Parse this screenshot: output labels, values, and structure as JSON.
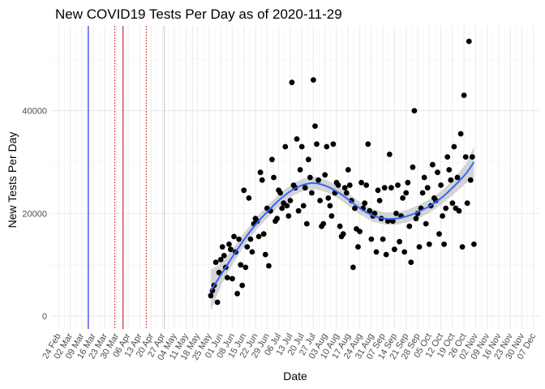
{
  "chart_data": {
    "type": "scatter",
    "title": "New COVID19 Tests Per Day as of 2020-11-29",
    "xlabel": "Date",
    "ylabel": "New Tests Per Day",
    "xlim": [
      "2020-02-19",
      "2020-12-11"
    ],
    "ylim": [
      -2500,
      56500
    ],
    "grid": true,
    "y_ticks": [
      {
        "value": 0,
        "label": "0"
      },
      {
        "value": 20000,
        "label": "20000"
      },
      {
        "value": 40000,
        "label": "40000"
      }
    ],
    "x_ticks": [
      {
        "date": "2020-02-24",
        "label": "24 Feb"
      },
      {
        "date": "2020-03-02",
        "label": "02 Mar"
      },
      {
        "date": "2020-03-09",
        "label": "09 Mar"
      },
      {
        "date": "2020-03-16",
        "label": "16 Mar"
      },
      {
        "date": "2020-03-23",
        "label": "23 Mar"
      },
      {
        "date": "2020-03-30",
        "label": "30 Mar"
      },
      {
        "date": "2020-04-06",
        "label": "06 Apr"
      },
      {
        "date": "2020-04-13",
        "label": "13 Apr"
      },
      {
        "date": "2020-04-20",
        "label": "20 Apr"
      },
      {
        "date": "2020-04-27",
        "label": "27 Apr"
      },
      {
        "date": "2020-05-04",
        "label": "04 May"
      },
      {
        "date": "2020-05-11",
        "label": "11 May"
      },
      {
        "date": "2020-05-18",
        "label": "18 May"
      },
      {
        "date": "2020-05-25",
        "label": "25 May"
      },
      {
        "date": "2020-06-01",
        "label": "01 Jun"
      },
      {
        "date": "2020-06-08",
        "label": "08 Jun"
      },
      {
        "date": "2020-06-15",
        "label": "15 Jun"
      },
      {
        "date": "2020-06-22",
        "label": "22 Jun"
      },
      {
        "date": "2020-06-29",
        "label": "29 Jun"
      },
      {
        "date": "2020-07-06",
        "label": "06 Jul"
      },
      {
        "date": "2020-07-13",
        "label": "13 Jul"
      },
      {
        "date": "2020-07-20",
        "label": "20 Jul"
      },
      {
        "date": "2020-07-27",
        "label": "27 Jul"
      },
      {
        "date": "2020-08-03",
        "label": "03 Aug"
      },
      {
        "date": "2020-08-10",
        "label": "10 Aug"
      },
      {
        "date": "2020-08-17",
        "label": "17 Aug"
      },
      {
        "date": "2020-08-24",
        "label": "24 Aug"
      },
      {
        "date": "2020-08-31",
        "label": "31 Aug"
      },
      {
        "date": "2020-09-07",
        "label": "07 Sep"
      },
      {
        "date": "2020-09-14",
        "label": "14 Sep"
      },
      {
        "date": "2020-09-21",
        "label": "21 Sep"
      },
      {
        "date": "2020-09-28",
        "label": "28 Sep"
      },
      {
        "date": "2020-10-05",
        "label": "05 Oct"
      },
      {
        "date": "2020-10-12",
        "label": "12 Oct"
      },
      {
        "date": "2020-10-19",
        "label": "19 Oct"
      },
      {
        "date": "2020-10-26",
        "label": "26 Oct"
      },
      {
        "date": "2020-11-02",
        "label": "02 Nov"
      },
      {
        "date": "2020-11-09",
        "label": "09 Nov"
      },
      {
        "date": "2020-11-16",
        "label": "16 Nov"
      },
      {
        "date": "2020-11-23",
        "label": "23 Nov"
      },
      {
        "date": "2020-11-30",
        "label": "30 Nov"
      },
      {
        "date": "2020-12-07",
        "label": "07 Dec"
      }
    ],
    "reference_lines": [
      {
        "date": "2020-03-13",
        "color": "#0000ff",
        "style": "solid"
      },
      {
        "date": "2020-03-29",
        "color": "#cc0000",
        "style": "dotted"
      },
      {
        "date": "2020-04-03",
        "color": "#cc0000",
        "style": "solid"
      },
      {
        "date": "2020-04-17",
        "color": "#cc0000",
        "style": "dotted"
      },
      {
        "date": "2020-04-28",
        "color": "#d8b8d8",
        "style": "solid"
      },
      {
        "date": "2020-05-15",
        "color": "#e8c8e8",
        "style": "dotted"
      }
    ],
    "points": [
      {
        "x": "2020-05-26",
        "y": 4000
      },
      {
        "x": "2020-05-27",
        "y": 5000
      },
      {
        "x": "2020-05-28",
        "y": 6000
      },
      {
        "x": "2020-05-29",
        "y": 10500
      },
      {
        "x": "2020-05-30",
        "y": 2700
      },
      {
        "x": "2020-05-31",
        "y": 8500
      },
      {
        "x": "2020-06-01",
        "y": 11000
      },
      {
        "x": "2020-06-02",
        "y": 13500
      },
      {
        "x": "2020-06-03",
        "y": 11800
      },
      {
        "x": "2020-06-04",
        "y": 9500
      },
      {
        "x": "2020-06-05",
        "y": 7500
      },
      {
        "x": "2020-06-06",
        "y": 14000
      },
      {
        "x": "2020-06-07",
        "y": 13000
      },
      {
        "x": "2020-06-08",
        "y": 7300
      },
      {
        "x": "2020-06-09",
        "y": 15500
      },
      {
        "x": "2020-06-10",
        "y": 12500
      },
      {
        "x": "2020-06-11",
        "y": 4400
      },
      {
        "x": "2020-06-12",
        "y": 15000
      },
      {
        "x": "2020-06-13",
        "y": 10000
      },
      {
        "x": "2020-06-14",
        "y": 6000
      },
      {
        "x": "2020-06-15",
        "y": 24500
      },
      {
        "x": "2020-06-16",
        "y": 9500
      },
      {
        "x": "2020-06-17",
        "y": 13500
      },
      {
        "x": "2020-06-18",
        "y": 23000
      },
      {
        "x": "2020-06-19",
        "y": 15000
      },
      {
        "x": "2020-06-20",
        "y": 12500
      },
      {
        "x": "2020-06-21",
        "y": 18000
      },
      {
        "x": "2020-06-22",
        "y": 19000
      },
      {
        "x": "2020-06-23",
        "y": 18500
      },
      {
        "x": "2020-06-24",
        "y": 15500
      },
      {
        "x": "2020-06-25",
        "y": 28000
      },
      {
        "x": "2020-06-26",
        "y": 26500
      },
      {
        "x": "2020-06-27",
        "y": 16000
      },
      {
        "x": "2020-06-28",
        "y": 12000
      },
      {
        "x": "2020-06-29",
        "y": 21000
      },
      {
        "x": "2020-06-30",
        "y": 9800
      },
      {
        "x": "2020-07-01",
        "y": 20500
      },
      {
        "x": "2020-07-02",
        "y": 30500
      },
      {
        "x": "2020-07-03",
        "y": 27000
      },
      {
        "x": "2020-07-04",
        "y": 18500
      },
      {
        "x": "2020-07-05",
        "y": 19000
      },
      {
        "x": "2020-07-06",
        "y": 24500
      },
      {
        "x": "2020-07-07",
        "y": 24000
      },
      {
        "x": "2020-07-08",
        "y": 21000
      },
      {
        "x": "2020-07-09",
        "y": 22000
      },
      {
        "x": "2020-07-10",
        "y": 33000
      },
      {
        "x": "2020-07-11",
        "y": 21500
      },
      {
        "x": "2020-07-12",
        "y": 19500
      },
      {
        "x": "2020-07-13",
        "y": 22500
      },
      {
        "x": "2020-07-14",
        "y": 45500
      },
      {
        "x": "2020-07-15",
        "y": 25500
      },
      {
        "x": "2020-07-16",
        "y": 25000
      },
      {
        "x": "2020-07-17",
        "y": 34500
      },
      {
        "x": "2020-07-18",
        "y": 20500
      },
      {
        "x": "2020-07-19",
        "y": 28500
      },
      {
        "x": "2020-07-20",
        "y": 33000
      },
      {
        "x": "2020-07-21",
        "y": 21500
      },
      {
        "x": "2020-07-22",
        "y": 25000
      },
      {
        "x": "2020-07-23",
        "y": 18000
      },
      {
        "x": "2020-07-24",
        "y": 30500
      },
      {
        "x": "2020-07-25",
        "y": 27000
      },
      {
        "x": "2020-07-26",
        "y": 24000
      },
      {
        "x": "2020-07-27",
        "y": 46000
      },
      {
        "x": "2020-07-28",
        "y": 37000
      },
      {
        "x": "2020-07-29",
        "y": 33500
      },
      {
        "x": "2020-07-30",
        "y": 26500
      },
      {
        "x": "2020-07-31",
        "y": 22500
      },
      {
        "x": "2020-08-01",
        "y": 17500
      },
      {
        "x": "2020-08-02",
        "y": 18000
      },
      {
        "x": "2020-08-03",
        "y": 27500
      },
      {
        "x": "2020-08-04",
        "y": 33000
      },
      {
        "x": "2020-08-05",
        "y": 23000
      },
      {
        "x": "2020-08-06",
        "y": 21500
      },
      {
        "x": "2020-08-07",
        "y": 19500
      },
      {
        "x": "2020-08-08",
        "y": 33500
      },
      {
        "x": "2020-08-09",
        "y": 24000
      },
      {
        "x": "2020-08-10",
        "y": 26000
      },
      {
        "x": "2020-08-11",
        "y": 25500
      },
      {
        "x": "2020-08-12",
        "y": 17500
      },
      {
        "x": "2020-08-13",
        "y": 15500
      },
      {
        "x": "2020-08-14",
        "y": 16000
      },
      {
        "x": "2020-08-15",
        "y": 25000
      },
      {
        "x": "2020-08-16",
        "y": 24000
      },
      {
        "x": "2020-08-17",
        "y": 28500
      },
      {
        "x": "2020-08-18",
        "y": 25500
      },
      {
        "x": "2020-08-19",
        "y": 22500
      },
      {
        "x": "2020-08-20",
        "y": 9500
      },
      {
        "x": "2020-08-21",
        "y": 21000
      },
      {
        "x": "2020-08-22",
        "y": 17000
      },
      {
        "x": "2020-08-23",
        "y": 13500
      },
      {
        "x": "2020-08-24",
        "y": 16500
      },
      {
        "x": "2020-08-25",
        "y": 26000
      },
      {
        "x": "2020-08-26",
        "y": 21000
      },
      {
        "x": "2020-08-27",
        "y": 22000
      },
      {
        "x": "2020-08-28",
        "y": 25500
      },
      {
        "x": "2020-08-29",
        "y": 33500
      },
      {
        "x": "2020-08-30",
        "y": 20500
      },
      {
        "x": "2020-08-31",
        "y": 15000
      },
      {
        "x": "2020-09-01",
        "y": 19500
      },
      {
        "x": "2020-09-02",
        "y": 20000
      },
      {
        "x": "2020-09-03",
        "y": 12500
      },
      {
        "x": "2020-09-04",
        "y": 24500
      },
      {
        "x": "2020-09-05",
        "y": 22500
      },
      {
        "x": "2020-09-06",
        "y": 19000
      },
      {
        "x": "2020-09-07",
        "y": 15000
      },
      {
        "x": "2020-09-08",
        "y": 25000
      },
      {
        "x": "2020-09-09",
        "y": 12000
      },
      {
        "x": "2020-09-10",
        "y": 18500
      },
      {
        "x": "2020-09-11",
        "y": 31500
      },
      {
        "x": "2020-09-12",
        "y": 25000
      },
      {
        "x": "2020-09-13",
        "y": 18500
      },
      {
        "x": "2020-09-14",
        "y": 13000
      },
      {
        "x": "2020-09-15",
        "y": 20000
      },
      {
        "x": "2020-09-16",
        "y": 25500
      },
      {
        "x": "2020-09-17",
        "y": 14500
      },
      {
        "x": "2020-09-18",
        "y": 19500
      },
      {
        "x": "2020-09-19",
        "y": 23000
      },
      {
        "x": "2020-09-20",
        "y": 12500
      },
      {
        "x": "2020-09-21",
        "y": 24000
      },
      {
        "x": "2020-09-22",
        "y": 26000
      },
      {
        "x": "2020-09-23",
        "y": 17500
      },
      {
        "x": "2020-09-24",
        "y": 10500
      },
      {
        "x": "2020-09-25",
        "y": 29000
      },
      {
        "x": "2020-09-26",
        "y": 40000
      },
      {
        "x": "2020-09-27",
        "y": 19000
      },
      {
        "x": "2020-09-28",
        "y": 20000
      },
      {
        "x": "2020-09-29",
        "y": 13500
      },
      {
        "x": "2020-09-30",
        "y": 21000
      },
      {
        "x": "2020-10-01",
        "y": 24000
      },
      {
        "x": "2020-10-02",
        "y": 27000
      },
      {
        "x": "2020-10-03",
        "y": 18000
      },
      {
        "x": "2020-10-04",
        "y": 25000
      },
      {
        "x": "2020-10-05",
        "y": 14000
      },
      {
        "x": "2020-10-06",
        "y": 21500
      },
      {
        "x": "2020-10-07",
        "y": 29500
      },
      {
        "x": "2020-10-08",
        "y": 23000
      },
      {
        "x": "2020-10-09",
        "y": 22500
      },
      {
        "x": "2020-10-10",
        "y": 28000
      },
      {
        "x": "2020-10-11",
        "y": 16000
      },
      {
        "x": "2020-10-12",
        "y": 25500
      },
      {
        "x": "2020-10-13",
        "y": 19500
      },
      {
        "x": "2020-10-14",
        "y": 14000
      },
      {
        "x": "2020-10-15",
        "y": 21000
      },
      {
        "x": "2020-10-16",
        "y": 31000
      },
      {
        "x": "2020-10-17",
        "y": 28500
      },
      {
        "x": "2020-10-18",
        "y": 26500
      },
      {
        "x": "2020-10-19",
        "y": 22000
      },
      {
        "x": "2020-10-20",
        "y": 33000
      },
      {
        "x": "2020-10-21",
        "y": 21000
      },
      {
        "x": "2020-10-22",
        "y": 27000
      },
      {
        "x": "2020-10-23",
        "y": 20500
      },
      {
        "x": "2020-10-24",
        "y": 35500
      },
      {
        "x": "2020-10-25",
        "y": 13500
      },
      {
        "x": "2020-10-26",
        "y": 43000
      },
      {
        "x": "2020-10-27",
        "y": 31000
      },
      {
        "x": "2020-10-28",
        "y": 22000
      },
      {
        "x": "2020-10-29",
        "y": 53500
      },
      {
        "x": "2020-10-30",
        "y": 26500
      },
      {
        "x": "2020-10-31",
        "y": 31000
      },
      {
        "x": "2020-11-01",
        "y": 14000
      }
    ],
    "trend": {
      "method": "loess",
      "color": "#3366ff",
      "band_color": "#bfbfbf",
      "fit": [
        {
          "x": "2020-05-26",
          "y": 5000,
          "lo": 1000,
          "hi": 9000
        },
        {
          "x": "2020-06-02",
          "y": 8500,
          "lo": 6500,
          "hi": 10500
        },
        {
          "x": "2020-06-09",
          "y": 12000,
          "lo": 10500,
          "hi": 13500
        },
        {
          "x": "2020-06-16",
          "y": 15300,
          "lo": 14000,
          "hi": 16600
        },
        {
          "x": "2020-06-23",
          "y": 18200,
          "lo": 17000,
          "hi": 19400
        },
        {
          "x": "2020-06-30",
          "y": 20600,
          "lo": 19400,
          "hi": 21800
        },
        {
          "x": "2020-07-07",
          "y": 22800,
          "lo": 21600,
          "hi": 24000
        },
        {
          "x": "2020-07-14",
          "y": 24500,
          "lo": 23300,
          "hi": 25700
        },
        {
          "x": "2020-07-21",
          "y": 25600,
          "lo": 24400,
          "hi": 26800
        },
        {
          "x": "2020-07-28",
          "y": 25900,
          "lo": 24700,
          "hi": 27100
        },
        {
          "x": "2020-08-04",
          "y": 25300,
          "lo": 24100,
          "hi": 26500
        },
        {
          "x": "2020-08-11",
          "y": 24100,
          "lo": 22900,
          "hi": 25300
        },
        {
          "x": "2020-08-18",
          "y": 22500,
          "lo": 21300,
          "hi": 23700
        },
        {
          "x": "2020-08-25",
          "y": 20800,
          "lo": 19600,
          "hi": 22000
        },
        {
          "x": "2020-09-01",
          "y": 19600,
          "lo": 18400,
          "hi": 20800
        },
        {
          "x": "2020-09-08",
          "y": 19000,
          "lo": 17800,
          "hi": 20200
        },
        {
          "x": "2020-09-15",
          "y": 19000,
          "lo": 17800,
          "hi": 20200
        },
        {
          "x": "2020-09-22",
          "y": 19500,
          "lo": 18300,
          "hi": 20700
        },
        {
          "x": "2020-09-29",
          "y": 20400,
          "lo": 19100,
          "hi": 21700
        },
        {
          "x": "2020-10-06",
          "y": 21600,
          "lo": 20300,
          "hi": 22900
        },
        {
          "x": "2020-10-13",
          "y": 23200,
          "lo": 21900,
          "hi": 24500
        },
        {
          "x": "2020-10-20",
          "y": 25300,
          "lo": 23800,
          "hi": 26800
        },
        {
          "x": "2020-10-27",
          "y": 27700,
          "lo": 25800,
          "hi": 29600
        },
        {
          "x": "2020-11-01",
          "y": 30000,
          "lo": 27000,
          "hi": 33000
        }
      ]
    }
  }
}
